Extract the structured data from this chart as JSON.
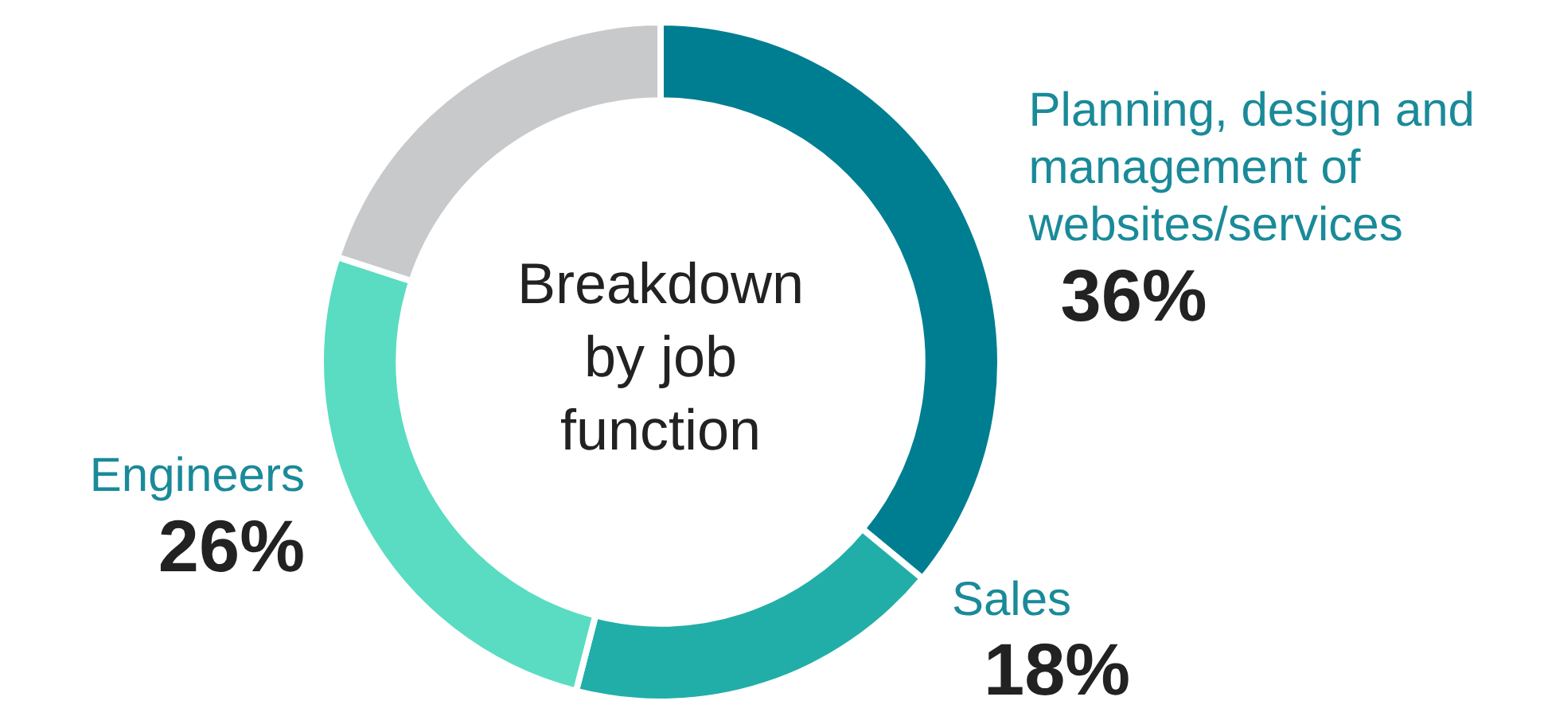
{
  "chart_data": {
    "type": "donut",
    "title": "Breakdown by job function",
    "categories": [
      "Planning, design and management of websites/services",
      "Sales",
      "Engineers",
      null
    ],
    "values": [
      36,
      18,
      26,
      20
    ],
    "colors": [
      "#007e91",
      "#22aea8",
      "#5adcc2",
      "#c8c9cb"
    ],
    "value_labels": [
      "36%",
      "18%",
      "26%",
      null
    ],
    "legend": false
  }
}
